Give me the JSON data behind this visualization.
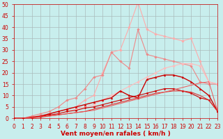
{
  "background_color": "#c8eeed",
  "grid_color": "#aabbbb",
  "xlabel": "Vent moyen/en rafales ( km/h )",
  "xlabel_color": "#cc0000",
  "xlabel_fontsize": 6.5,
  "tick_color": "#cc0000",
  "tick_fontsize": 5.5,
  "xlim": [
    0,
    23
  ],
  "ylim": [
    0,
    50
  ],
  "yticks": [
    0,
    5,
    10,
    15,
    20,
    25,
    30,
    35,
    40,
    45,
    50
  ],
  "xticks": [
    0,
    1,
    2,
    3,
    4,
    5,
    6,
    7,
    8,
    9,
    10,
    11,
    12,
    13,
    14,
    15,
    16,
    17,
    18,
    19,
    20,
    21,
    22,
    23
  ],
  "series": [
    {
      "x": [
        0,
        1,
        2,
        3,
        4,
        5,
        6,
        7,
        8,
        9,
        10,
        11,
        12,
        13,
        14,
        15,
        16,
        17,
        18,
        19,
        20,
        21,
        22,
        23
      ],
      "y": [
        0,
        0,
        0,
        1,
        2,
        3,
        4,
        5,
        8,
        10,
        20,
        29,
        30,
        40,
        51,
        39,
        37,
        36,
        35,
        34,
        35,
        25,
        16,
        15
      ],
      "color": "#ffaaaa",
      "linewidth": 0.8,
      "marker": "D",
      "markersize": 1.8
    },
    {
      "x": [
        0,
        1,
        2,
        3,
        4,
        5,
        6,
        7,
        8,
        9,
        10,
        11,
        12,
        13,
        14,
        15,
        16,
        17,
        18,
        19,
        20,
        21,
        22,
        23
      ],
      "y": [
        0,
        0,
        1,
        2,
        3,
        5,
        8,
        9,
        13,
        18,
        19,
        29,
        25,
        22,
        39,
        28,
        27,
        26,
        25,
        24,
        23,
        16,
        15,
        15
      ],
      "color": "#ee8888",
      "linewidth": 0.8,
      "marker": "D",
      "markersize": 1.8
    },
    {
      "x": [
        0,
        1,
        2,
        3,
        4,
        5,
        6,
        7,
        8,
        9,
        10,
        11,
        12,
        13,
        14,
        15,
        16,
        17,
        18,
        19,
        20,
        21,
        22,
        23
      ],
      "y": [
        0,
        0,
        0.5,
        1,
        1.5,
        2,
        3,
        4,
        5,
        6,
        8,
        10,
        12,
        14,
        16,
        18,
        20,
        22,
        23,
        24,
        24,
        23,
        16,
        15
      ],
      "color": "#ffbbbb",
      "linewidth": 0.8,
      "marker": "D",
      "markersize": 1.8
    },
    {
      "x": [
        0,
        1,
        2,
        3,
        4,
        5,
        6,
        7,
        8,
        9,
        10,
        11,
        12,
        13,
        14,
        15,
        16,
        17,
        18,
        19,
        20,
        21,
        22,
        23
      ],
      "y": [
        0,
        0,
        0.5,
        1,
        2,
        3,
        4,
        5,
        6,
        7,
        8,
        9,
        12,
        10,
        9,
        17,
        18,
        19,
        19,
        18,
        16,
        13,
        10,
        3
      ],
      "color": "#cc0000",
      "linewidth": 1.0,
      "marker": "^",
      "markersize": 2.0
    },
    {
      "x": [
        0,
        1,
        2,
        3,
        4,
        5,
        6,
        7,
        8,
        9,
        10,
        11,
        12,
        13,
        14,
        15,
        16,
        17,
        18,
        19,
        20,
        21,
        22,
        23
      ],
      "y": [
        0,
        0,
        0.3,
        0.7,
        1.5,
        2,
        3,
        3.5,
        4.5,
        5,
        6,
        7,
        8,
        9,
        10,
        11,
        12,
        13,
        13,
        12,
        11,
        9,
        8,
        3
      ],
      "color": "#cc0000",
      "linewidth": 0.8,
      "marker": "D",
      "markersize": 1.5
    },
    {
      "x": [
        0,
        1,
        2,
        3,
        4,
        5,
        6,
        7,
        8,
        9,
        10,
        11,
        12,
        13,
        14,
        15,
        16,
        17,
        18,
        19,
        20,
        21,
        22,
        23
      ],
      "y": [
        0,
        0,
        0.2,
        0.5,
        1,
        1.5,
        2,
        2.5,
        3,
        4,
        5,
        6,
        7,
        8,
        9,
        10,
        11,
        11.5,
        12,
        12,
        11.5,
        10,
        8,
        3
      ],
      "color": "#dd3333",
      "linewidth": 0.8,
      "marker": null,
      "markersize": 0
    },
    {
      "x": [
        0,
        1,
        2,
        3,
        4,
        5,
        6,
        7,
        8,
        9,
        10,
        11,
        12,
        13,
        14,
        15,
        16,
        17,
        18,
        19,
        20,
        21,
        22,
        23
      ],
      "y": [
        0,
        0,
        0.3,
        0.7,
        1,
        1.5,
        2,
        2.5,
        3,
        3.5,
        4.5,
        5.5,
        6.5,
        7.5,
        8.5,
        9.5,
        10.5,
        11.5,
        12.5,
        13.5,
        14.5,
        15.5,
        16,
        3
      ],
      "color": "#ee5555",
      "linewidth": 0.7,
      "marker": null,
      "markersize": 0
    }
  ]
}
